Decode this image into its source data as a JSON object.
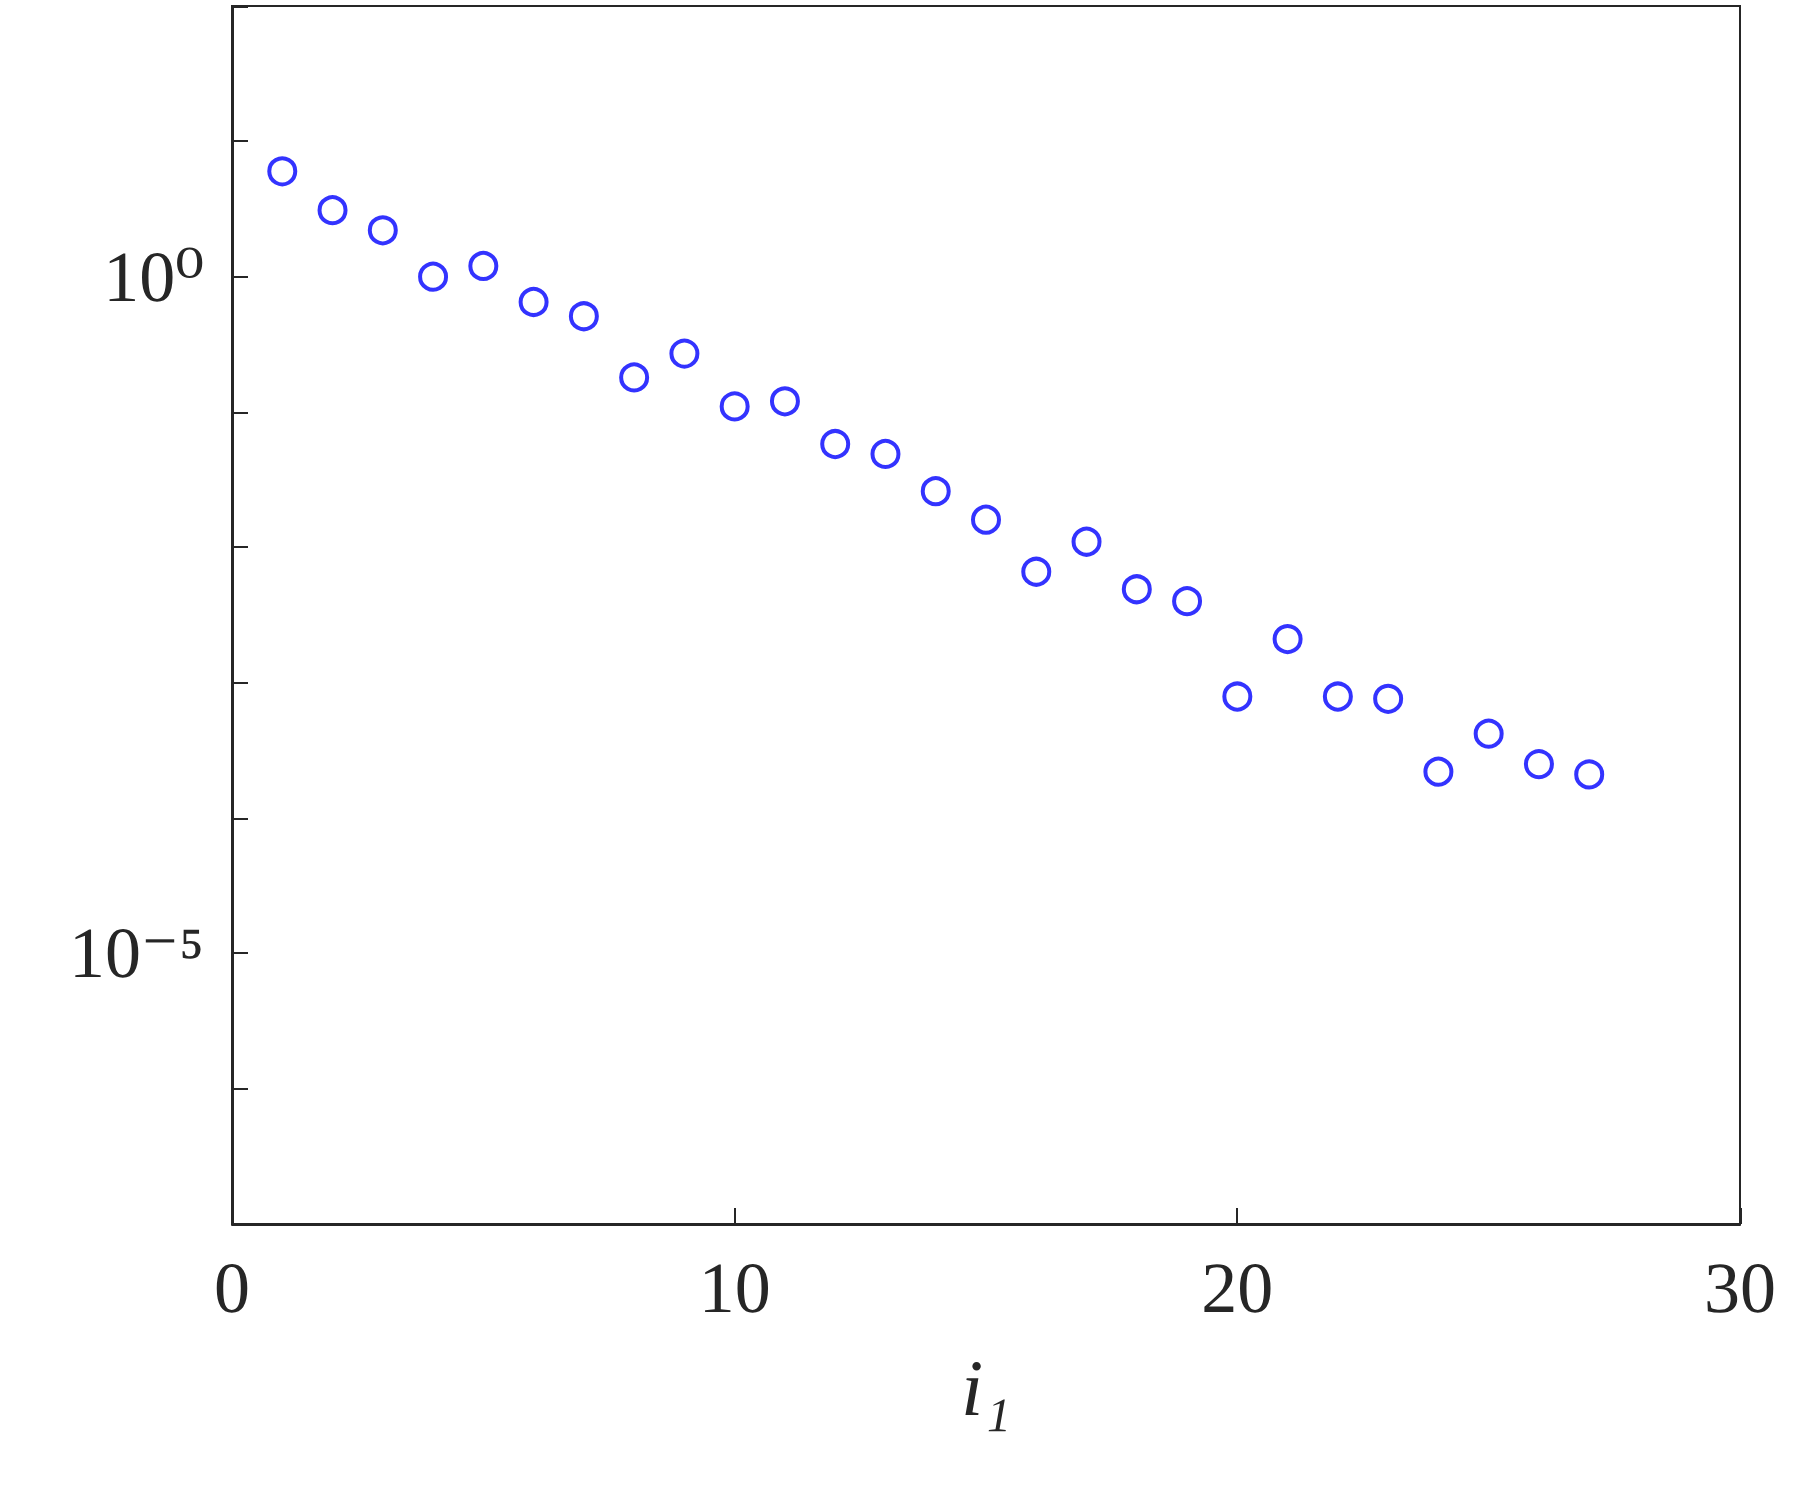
{
  "chart_data": {
    "type": "scatter",
    "xlabel": "i₁",
    "x": [
      1,
      2,
      3,
      4,
      5,
      6,
      7,
      8,
      9,
      10,
      11,
      12,
      13,
      14,
      15,
      16,
      17,
      18,
      19,
      20,
      21,
      22,
      23,
      24,
      25,
      26,
      27
    ],
    "series": [
      {
        "color": "#0000ff",
        "values": [
          6.0,
          3.1,
          2.2,
          1.0,
          1.2,
          0.65,
          0.51,
          0.18,
          0.27,
          0.11,
          0.12,
          0.058,
          0.049,
          0.026,
          0.016,
          0.0066,
          0.011,
          0.0049,
          0.004,
          0.00079,
          0.0021,
          0.00079,
          0.00076,
          0.00022,
          0.00042,
          0.00025,
          0.00021
        ]
      }
    ],
    "marker": "circle",
    "log": "y",
    "grid": false,
    "xlim": [
      0,
      30
    ],
    "xticks": [
      0,
      10,
      20,
      30
    ],
    "ylim": [
      1e-07,
      100
    ],
    "yticks": [
      {
        "value": 1e-07,
        "label": null
      },
      {
        "value": 1e-06,
        "label": null
      },
      {
        "value": 1e-05,
        "label": "10⁻⁵"
      },
      {
        "value": 0.0001,
        "label": null
      },
      {
        "value": 0.001,
        "label": null
      },
      {
        "value": 0.01,
        "label": null
      },
      {
        "value": 0.1,
        "label": null
      },
      {
        "value": 1,
        "label": "10⁰"
      },
      {
        "value": 10,
        "label": null
      },
      {
        "value": 100,
        "label": null
      }
    ]
  }
}
